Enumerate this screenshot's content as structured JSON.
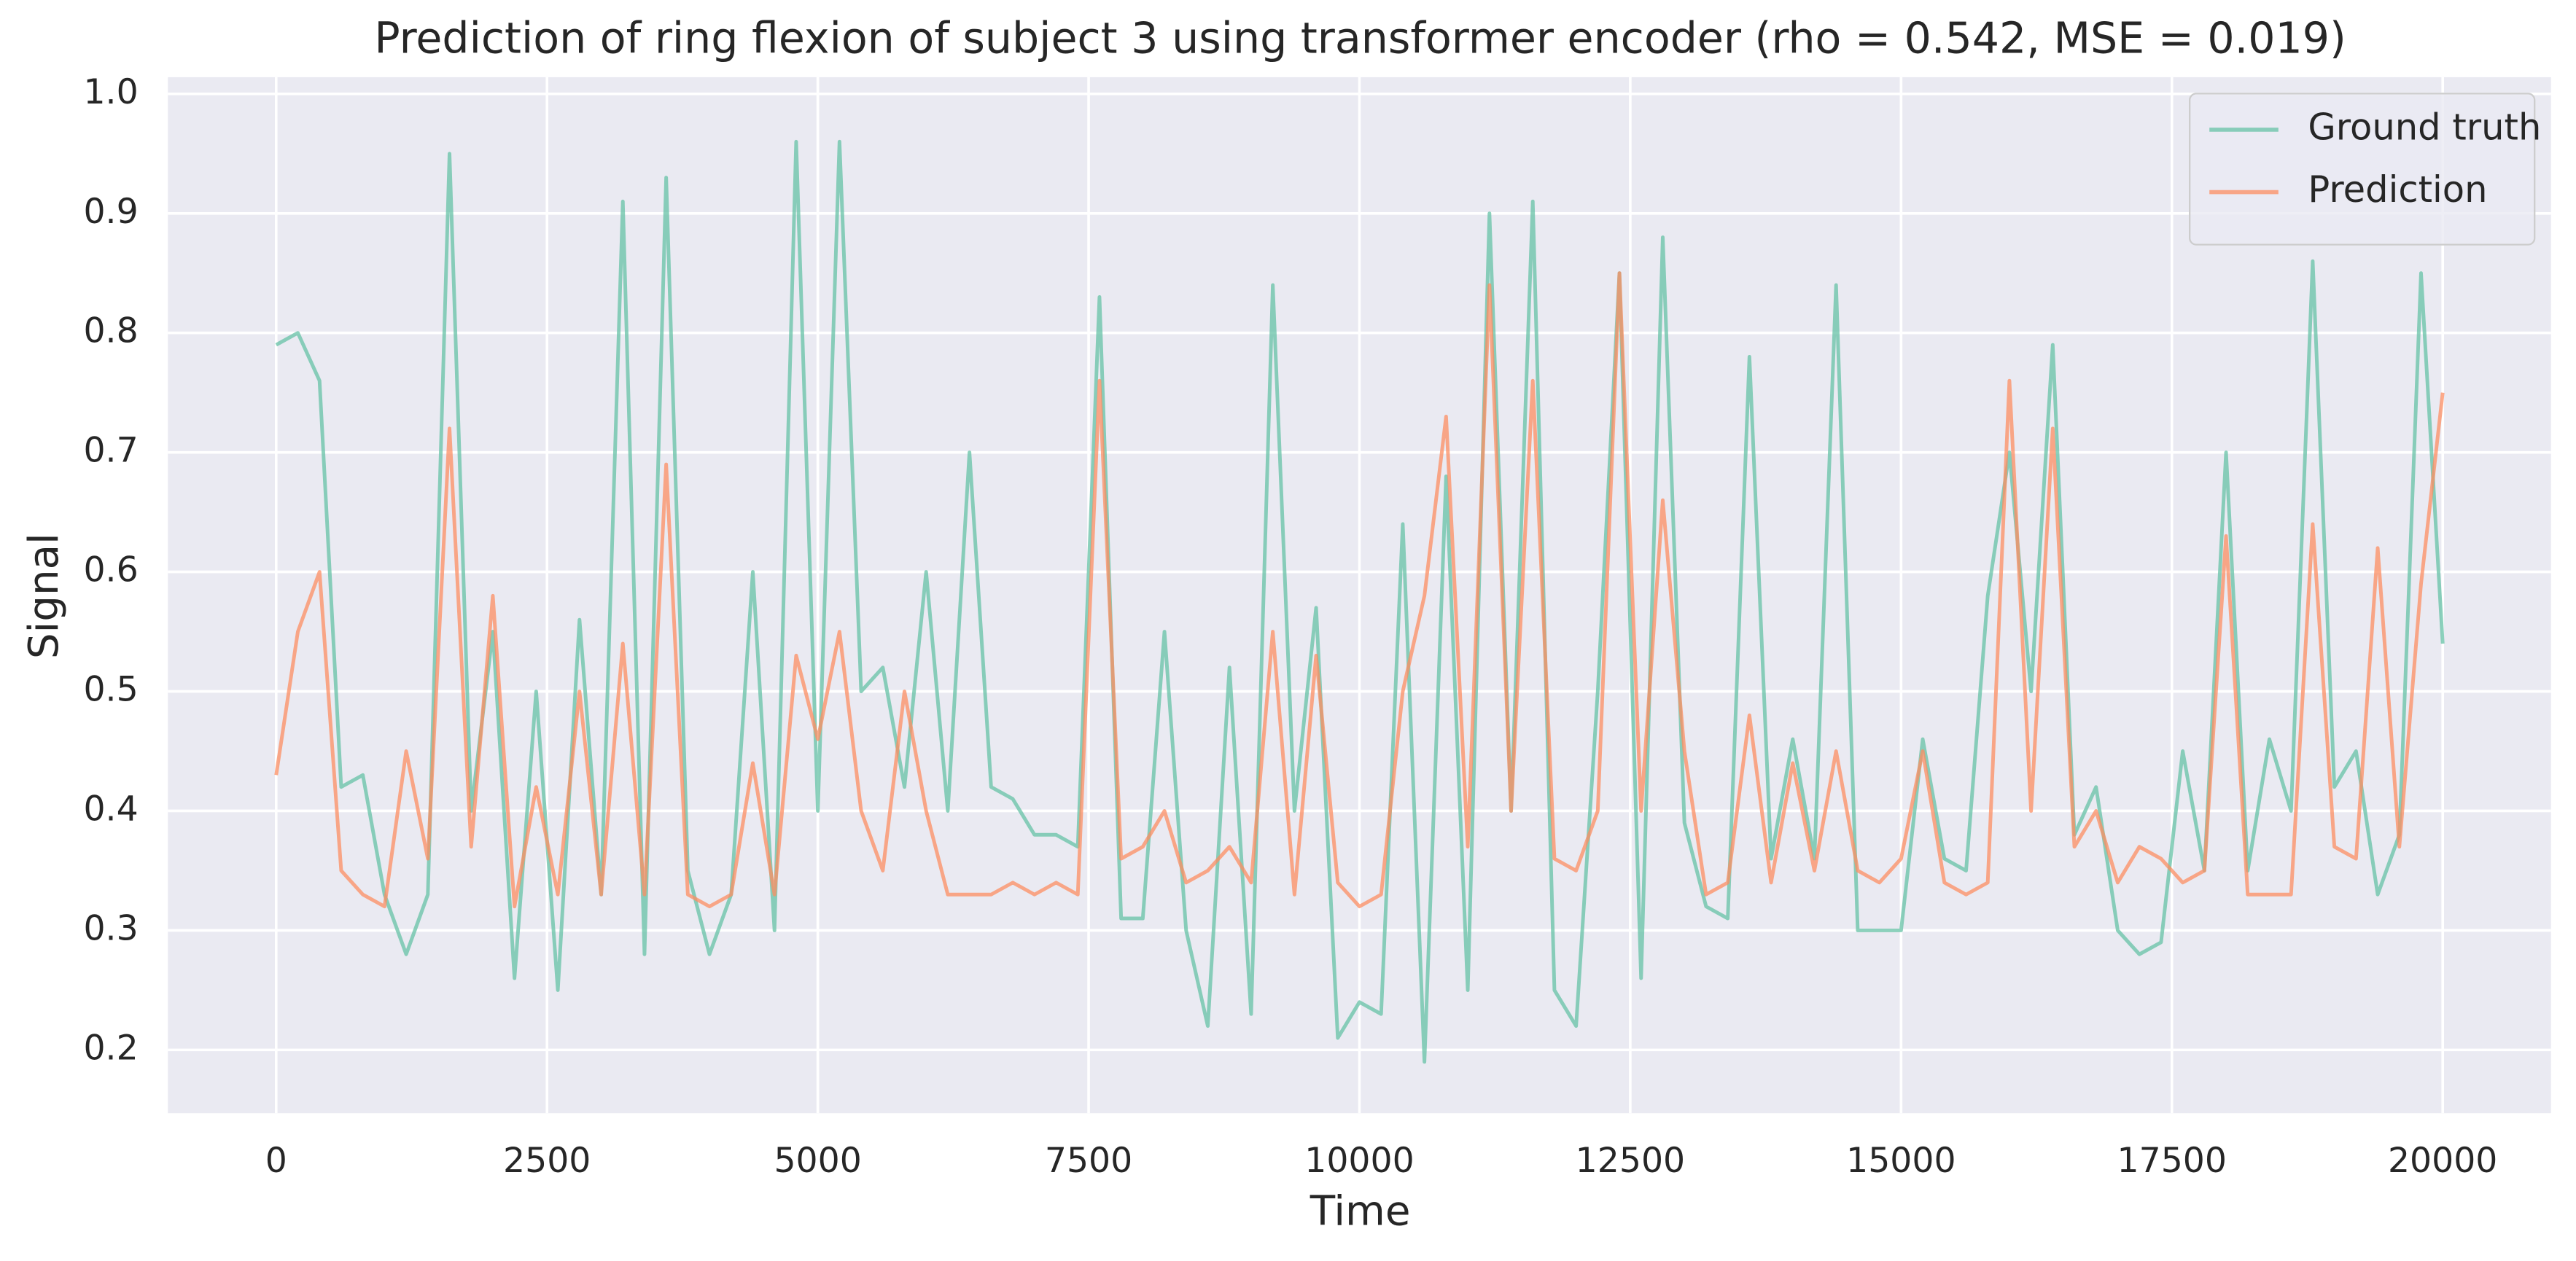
{
  "chart_data": {
    "type": "line",
    "title": "Prediction of ring flexion of subject 3 using transformer encoder (rho = 0.542, MSE = 0.019)",
    "x_label": "Time",
    "y_label": "Signal",
    "x": [
      0,
      200,
      400,
      600,
      800,
      1000,
      1200,
      1400,
      1600,
      1800,
      2000,
      2200,
      2400,
      2600,
      2800,
      3000,
      3200,
      3400,
      3600,
      3800,
      4000,
      4200,
      4400,
      4600,
      4800,
      5000,
      5200,
      5400,
      5600,
      5800,
      6000,
      6200,
      6400,
      6600,
      6800,
      7000,
      7200,
      7400,
      7600,
      7800,
      8000,
      8200,
      8400,
      8600,
      8800,
      9000,
      9200,
      9400,
      9600,
      9800,
      10000,
      10200,
      10400,
      10600,
      10800,
      11000,
      11200,
      11400,
      11600,
      11800,
      12000,
      12200,
      12400,
      12600,
      12800,
      13000,
      13200,
      13400,
      13600,
      13800,
      14000,
      14200,
      14400,
      14600,
      14800,
      15000,
      15200,
      15400,
      15600,
      15800,
      16000,
      16200,
      16400,
      16600,
      16800,
      17000,
      17200,
      17400,
      17600,
      17800,
      18000,
      18200,
      18400,
      18600,
      18800,
      19000,
      19200,
      19400,
      19600,
      19800,
      20000
    ],
    "series": [
      {
        "name": "Ground truth",
        "color": "#66c2a5",
        "values": [
          0.79,
          0.8,
          0.76,
          0.42,
          0.43,
          0.33,
          0.28,
          0.33,
          0.95,
          0.4,
          0.55,
          0.26,
          0.5,
          0.25,
          0.56,
          0.33,
          0.91,
          0.28,
          0.93,
          0.35,
          0.28,
          0.33,
          0.6,
          0.3,
          0.96,
          0.4,
          0.96,
          0.5,
          0.52,
          0.42,
          0.6,
          0.4,
          0.7,
          0.42,
          0.41,
          0.38,
          0.38,
          0.37,
          0.83,
          0.31,
          0.31,
          0.55,
          0.3,
          0.22,
          0.52,
          0.23,
          0.84,
          0.4,
          0.57,
          0.21,
          0.24,
          0.23,
          0.64,
          0.19,
          0.68,
          0.25,
          0.9,
          0.4,
          0.91,
          0.25,
          0.22,
          0.5,
          0.85,
          0.26,
          0.88,
          0.39,
          0.32,
          0.31,
          0.78,
          0.36,
          0.46,
          0.36,
          0.84,
          0.3,
          0.3,
          0.3,
          0.46,
          0.36,
          0.35,
          0.58,
          0.7,
          0.5,
          0.79,
          0.38,
          0.42,
          0.3,
          0.28,
          0.29,
          0.45,
          0.35,
          0.7,
          0.35,
          0.46,
          0.4,
          0.86,
          0.42,
          0.45,
          0.33,
          0.38,
          0.85,
          0.54
        ]
      },
      {
        "name": "Prediction",
        "color": "#fc8d62",
        "values": [
          0.43,
          0.55,
          0.6,
          0.35,
          0.33,
          0.32,
          0.45,
          0.36,
          0.72,
          0.37,
          0.58,
          0.32,
          0.42,
          0.33,
          0.5,
          0.33,
          0.54,
          0.33,
          0.69,
          0.33,
          0.32,
          0.33,
          0.44,
          0.33,
          0.53,
          0.46,
          0.55,
          0.4,
          0.35,
          0.5,
          0.4,
          0.33,
          0.33,
          0.33,
          0.34,
          0.33,
          0.34,
          0.33,
          0.76,
          0.36,
          0.37,
          0.4,
          0.34,
          0.35,
          0.37,
          0.34,
          0.55,
          0.33,
          0.53,
          0.34,
          0.32,
          0.33,
          0.5,
          0.58,
          0.73,
          0.37,
          0.84,
          0.4,
          0.76,
          0.36,
          0.35,
          0.4,
          0.85,
          0.4,
          0.66,
          0.45,
          0.33,
          0.34,
          0.48,
          0.34,
          0.44,
          0.35,
          0.45,
          0.35,
          0.34,
          0.36,
          0.45,
          0.34,
          0.33,
          0.34,
          0.76,
          0.4,
          0.72,
          0.37,
          0.4,
          0.34,
          0.37,
          0.36,
          0.34,
          0.35,
          0.63,
          0.33,
          0.33,
          0.33,
          0.64,
          0.37,
          0.36,
          0.62,
          0.37,
          0.59,
          0.75
        ]
      }
    ],
    "xlim": [
      -1000,
      21000
    ],
    "ylim": [
      0.147,
      1.014
    ],
    "xticks": [
      0,
      2500,
      5000,
      7500,
      10000,
      12500,
      15000,
      17500,
      20000
    ],
    "yticks": [
      0.2,
      0.3,
      0.4,
      0.5,
      0.6,
      0.7,
      0.8,
      0.9,
      {
        "value": 1,
        "label": "1.0"
      }
    ],
    "grid": true,
    "legend": "upper right"
  }
}
